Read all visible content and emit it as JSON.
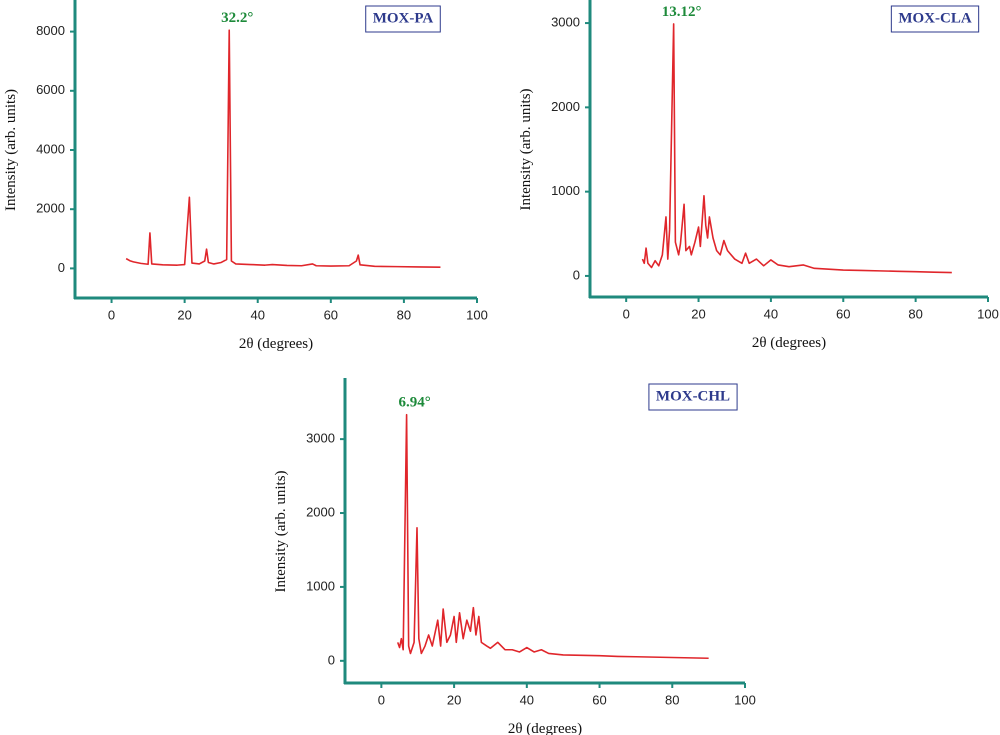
{
  "chart_data": [
    {
      "type": "line",
      "xlabel": "2θ (degrees)",
      "ylabel": "Intensity (arb. units)",
      "annotation": "32.2°",
      "xlim": [
        -10,
        100
      ],
      "xticks": [
        0,
        20,
        40,
        60,
        80,
        100
      ],
      "ylim": [
        -1000,
        9000
      ],
      "yticks": [
        0,
        2000,
        4000,
        6000,
        8000
      ],
      "x": [
        4,
        5,
        6,
        8,
        10,
        10.5,
        11,
        14,
        18,
        20,
        21.3,
        22,
        24,
        25.5,
        26,
        26.5,
        28,
        30,
        31.5,
        32.2,
        32.8,
        34,
        38,
        42,
        44,
        48,
        52,
        55,
        56,
        60,
        65,
        67,
        67.5,
        68,
        72,
        78,
        84,
        90
      ],
      "series": [
        {
          "name": "MOX-PA",
          "color": "#e0262b",
          "values": [
            330,
            260,
            220,
            170,
            140,
            1200,
            150,
            120,
            110,
            130,
            2400,
            180,
            150,
            250,
            650,
            200,
            150,
            200,
            300,
            8050,
            250,
            150,
            130,
            110,
            130,
            100,
            90,
            150,
            90,
            80,
            90,
            250,
            450,
            120,
            70,
            60,
            50,
            40
          ]
        }
      ]
    },
    {
      "type": "line",
      "xlabel": "2θ (degrees)",
      "ylabel": "Intensity (arb. units)",
      "annotation": "13.12°",
      "xlim": [
        -10,
        100
      ],
      "xticks": [
        0,
        20,
        40,
        60,
        80,
        100
      ],
      "ylim": [
        -250,
        3250
      ],
      "yticks": [
        0,
        1000,
        2000,
        3000
      ],
      "x": [
        4.5,
        5,
        5.5,
        6,
        7,
        8,
        9,
        10,
        11,
        11.5,
        12,
        13.12,
        13.6,
        14.5,
        15,
        16,
        16.5,
        17.5,
        18,
        19,
        20,
        20.5,
        21.5,
        22,
        22.5,
        23,
        24,
        25,
        26,
        27,
        28,
        30,
        32,
        33,
        34,
        36,
        38,
        40,
        42,
        45,
        49,
        52,
        56,
        60,
        65,
        70,
        75,
        80,
        85,
        90
      ],
      "series": [
        {
          "name": "MOX-CLA",
          "color": "#e0262b",
          "values": [
            200,
            150,
            330,
            150,
            100,
            180,
            120,
            250,
            700,
            200,
            550,
            2990,
            400,
            250,
            380,
            850,
            300,
            350,
            250,
            400,
            580,
            350,
            950,
            600,
            450,
            700,
            450,
            300,
            250,
            420,
            300,
            200,
            150,
            270,
            150,
            200,
            120,
            190,
            130,
            110,
            130,
            90,
            80,
            70,
            65,
            60,
            55,
            50,
            45,
            40
          ]
        }
      ]
    },
    {
      "type": "line",
      "xlabel": "2θ (degrees)",
      "ylabel": "Intensity (arb. units)",
      "annotation": "6.94°",
      "xlim": [
        -10,
        100
      ],
      "xticks": [
        0,
        20,
        40,
        60,
        80,
        100
      ],
      "ylim": [
        -300,
        3800
      ],
      "yticks": [
        0,
        1000,
        2000,
        3000
      ],
      "x": [
        4.5,
        5,
        5.5,
        6,
        6.94,
        7.5,
        8,
        9,
        9.8,
        10.3,
        11,
        12,
        13,
        14,
        15.5,
        16.3,
        17,
        18,
        19,
        20,
        20.6,
        21.5,
        22.5,
        23.5,
        24.5,
        25.3,
        26,
        26.8,
        27.5,
        29,
        30,
        32,
        34,
        36,
        38,
        40,
        42,
        44,
        46,
        48,
        50,
        55,
        60,
        65,
        70,
        75,
        80,
        85,
        90
      ],
      "series": [
        {
          "name": "MOX-CHL",
          "color": "#e0262b",
          "values": [
            250,
            180,
            300,
            150,
            3330,
            200,
            100,
            250,
            1800,
            300,
            100,
            200,
            350,
            200,
            550,
            200,
            700,
            250,
            350,
            600,
            250,
            650,
            300,
            550,
            400,
            720,
            350,
            600,
            250,
            200,
            170,
            250,
            150,
            150,
            120,
            180,
            120,
            150,
            100,
            90,
            80,
            75,
            70,
            60,
            55,
            50,
            45,
            40,
            35
          ]
        }
      ]
    }
  ]
}
